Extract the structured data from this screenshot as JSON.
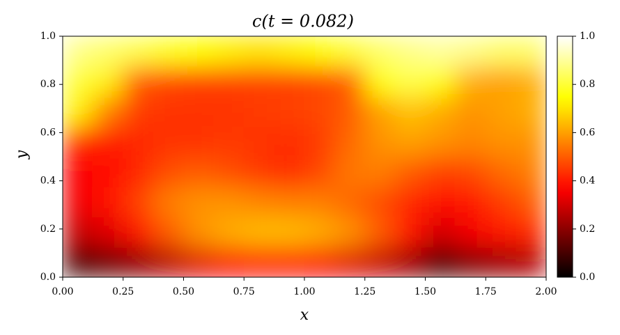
{
  "chart_data": {
    "type": "heatmap",
    "title": "c(t = 0.082)",
    "xlabel": "x",
    "ylabel": "y",
    "colormap": "hot",
    "xlim": [
      0,
      2
    ],
    "ylim": [
      0,
      1
    ],
    "clim": [
      0,
      1
    ],
    "xticks": [
      {
        "value": 0,
        "label": "0.00"
      },
      {
        "value": 0.25,
        "label": "0.25"
      },
      {
        "value": 0.5,
        "label": "0.50"
      },
      {
        "value": 0.75,
        "label": "0.75"
      },
      {
        "value": 1,
        "label": "1.00"
      },
      {
        "value": 1.25,
        "label": "1.25"
      },
      {
        "value": 1.5,
        "label": "1.50"
      },
      {
        "value": 1.75,
        "label": "1.75"
      },
      {
        "value": 2,
        "label": "2.00"
      }
    ],
    "yticks": [
      {
        "value": 0,
        "label": "0.0"
      },
      {
        "value": 0.2,
        "label": "0.2"
      },
      {
        "value": 0.4,
        "label": "0.4"
      },
      {
        "value": 0.6,
        "label": "0.6"
      },
      {
        "value": 0.8,
        "label": "0.8"
      },
      {
        "value": 1,
        "label": "1.0"
      }
    ],
    "cticks": [
      {
        "value": 0,
        "label": "0.0"
      },
      {
        "value": 0.2,
        "label": "0.2"
      },
      {
        "value": 0.4,
        "label": "0.4"
      },
      {
        "value": 0.6,
        "label": "0.6"
      },
      {
        "value": 0.8,
        "label": "0.8"
      },
      {
        "value": 1,
        "label": "1.0"
      }
    ],
    "x": [
      0.0625,
      0.1875,
      0.3125,
      0.4375,
      0.5625,
      0.6875,
      0.8125,
      0.9375,
      1.0625,
      1.1875,
      1.3125,
      1.4375,
      1.5625,
      1.6875,
      1.8125,
      1.9375
    ],
    "y": [
      0.0625,
      0.1875,
      0.3125,
      0.4375,
      0.5625,
      0.6875,
      0.8125,
      0.9375
    ],
    "z": [
      [
        0.1,
        0.15,
        0.2,
        0.26,
        0.32,
        0.36,
        0.38,
        0.38,
        0.36,
        0.32,
        0.28,
        0.22,
        0.1,
        0.18,
        0.22,
        0.25
      ],
      [
        0.28,
        0.32,
        0.4,
        0.5,
        0.58,
        0.62,
        0.64,
        0.64,
        0.62,
        0.58,
        0.5,
        0.4,
        0.3,
        0.35,
        0.4,
        0.42
      ],
      [
        0.35,
        0.38,
        0.46,
        0.55,
        0.58,
        0.58,
        0.56,
        0.55,
        0.55,
        0.52,
        0.48,
        0.42,
        0.38,
        0.4,
        0.45,
        0.5
      ],
      [
        0.36,
        0.38,
        0.42,
        0.48,
        0.5,
        0.48,
        0.45,
        0.43,
        0.47,
        0.54,
        0.55,
        0.5,
        0.46,
        0.47,
        0.52,
        0.55
      ],
      [
        0.42,
        0.4,
        0.42,
        0.44,
        0.44,
        0.45,
        0.44,
        0.43,
        0.45,
        0.52,
        0.58,
        0.6,
        0.58,
        0.56,
        0.58,
        0.58
      ],
      [
        0.72,
        0.55,
        0.45,
        0.44,
        0.44,
        0.44,
        0.45,
        0.46,
        0.47,
        0.5,
        0.6,
        0.65,
        0.62,
        0.58,
        0.6,
        0.62
      ],
      [
        0.8,
        0.72,
        0.5,
        0.47,
        0.46,
        0.46,
        0.46,
        0.46,
        0.47,
        0.5,
        0.75,
        0.82,
        0.75,
        0.62,
        0.6,
        0.62
      ],
      [
        0.88,
        0.85,
        0.82,
        0.78,
        0.75,
        0.72,
        0.7,
        0.72,
        0.75,
        0.8,
        0.85,
        0.88,
        0.9,
        0.88,
        0.85,
        0.85
      ]
    ]
  }
}
